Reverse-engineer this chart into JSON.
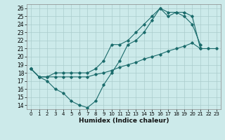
{
  "xlabel": "Humidex (Indice chaleur)",
  "background_color": "#cceaea",
  "grid_color": "#aacccc",
  "line_color": "#1a6b6b",
  "xlim": [
    -0.5,
    23.5
  ],
  "ylim": [
    13.5,
    26.5
  ],
  "xticks": [
    0,
    1,
    2,
    3,
    4,
    5,
    6,
    7,
    8,
    9,
    10,
    11,
    12,
    13,
    14,
    15,
    16,
    17,
    18,
    19,
    20,
    21,
    22,
    23
  ],
  "yticks": [
    14,
    15,
    16,
    17,
    18,
    19,
    20,
    21,
    22,
    23,
    24,
    25,
    26
  ],
  "line1_x": [
    0,
    1,
    2,
    3,
    4,
    5,
    6,
    7,
    8,
    9,
    10,
    11,
    12,
    13,
    14,
    15,
    16,
    17,
    18,
    19,
    20,
    21
  ],
  "line1_y": [
    18.5,
    17.5,
    17.0,
    16.0,
    15.5,
    14.5,
    14.0,
    13.7,
    14.5,
    16.5,
    18.0,
    19.5,
    21.5,
    22.0,
    23.0,
    24.5,
    26.0,
    25.0,
    25.5,
    25.0,
    24.0,
    21.5
  ],
  "line2_x": [
    0,
    1,
    2,
    3,
    4,
    5,
    6,
    7,
    8,
    9,
    10,
    11,
    12,
    13,
    14,
    15,
    16,
    17,
    18,
    19,
    20,
    21,
    22,
    23
  ],
  "line2_y": [
    18.5,
    17.5,
    17.5,
    17.5,
    17.5,
    17.5,
    17.5,
    17.5,
    17.8,
    18.0,
    18.3,
    18.7,
    19.0,
    19.3,
    19.7,
    20.0,
    20.3,
    20.7,
    21.0,
    21.3,
    21.7,
    21.0,
    21.0,
    21.0
  ],
  "line3_x": [
    0,
    1,
    2,
    3,
    4,
    5,
    6,
    7,
    8,
    9,
    10,
    11,
    12,
    13,
    14,
    15,
    16,
    17,
    18,
    19,
    20,
    21
  ],
  "line3_y": [
    18.5,
    17.5,
    17.5,
    18.0,
    18.0,
    18.0,
    18.0,
    18.0,
    18.5,
    19.5,
    21.5,
    21.5,
    22.0,
    23.0,
    24.0,
    25.0,
    26.0,
    25.5,
    25.5,
    25.5,
    25.0,
    21.0
  ]
}
